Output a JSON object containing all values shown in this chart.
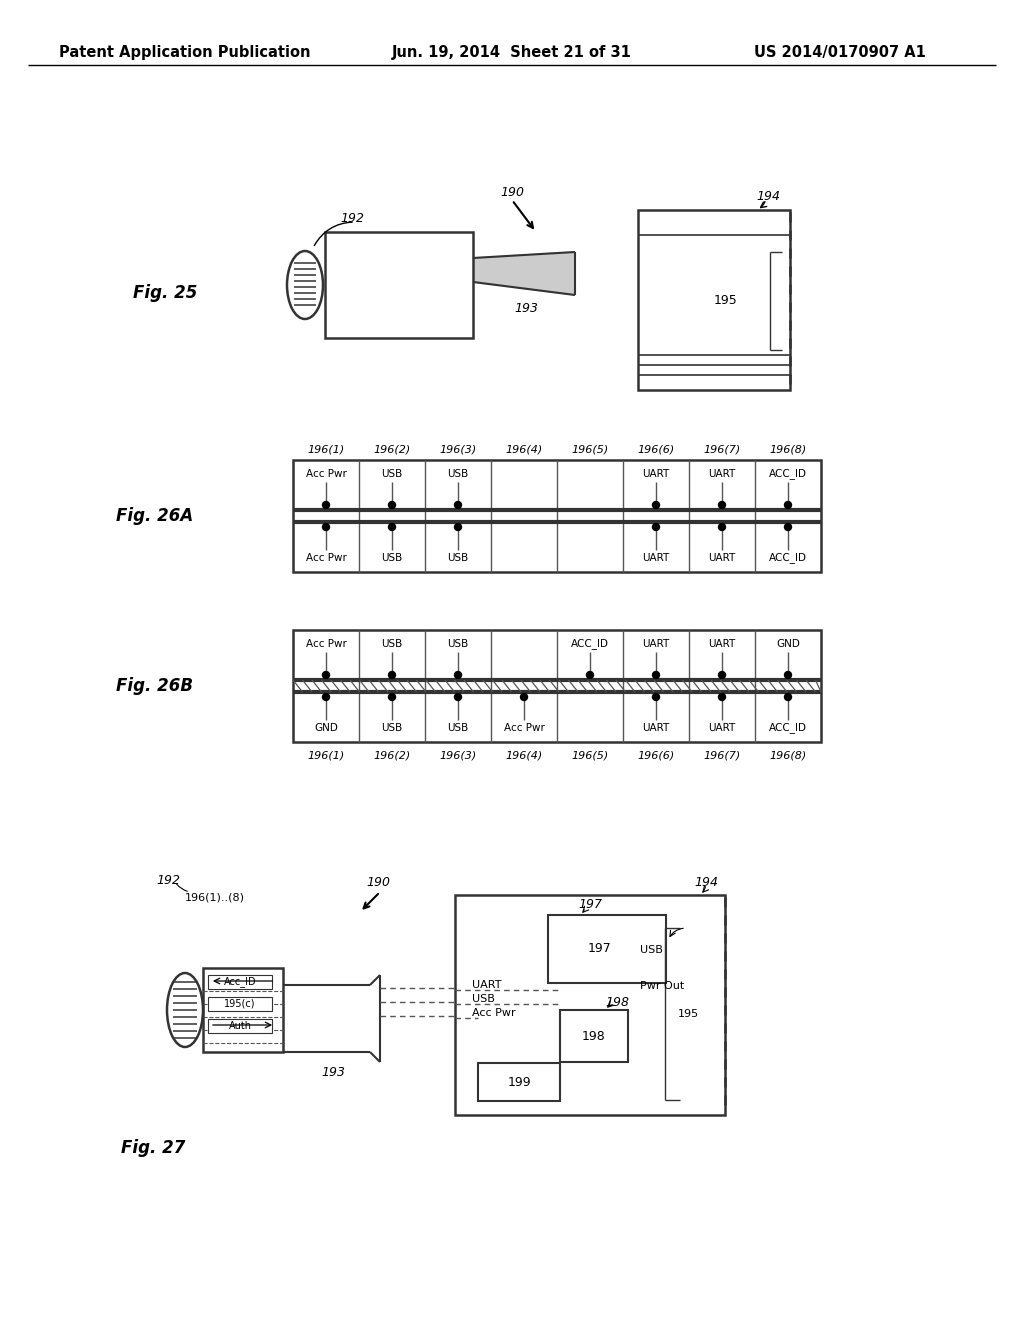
{
  "bg_color": "#ffffff",
  "header_left": "Patent Application Publication",
  "header_mid": "Jun. 19, 2014  Sheet 21 of 31",
  "header_right": "US 2014/0170907 A1",
  "fig25_label": "Fig. 25",
  "fig26a_label": "Fig. 26A",
  "fig26b_label": "Fig. 26B",
  "fig27_label": "Fig. 27",
  "col_nums": [
    "196(1)",
    "196(2)",
    "196(3)",
    "196(4)",
    "196(5)",
    "196(6)",
    "196(7)",
    "196(8)"
  ],
  "pin_26a_top": {
    "0": "Acc Pwr",
    "1": "USB",
    "2": "USB",
    "5": "UART",
    "6": "UART",
    "7": "ACC_ID"
  },
  "pin_26a_bot": {
    "0": "Acc Pwr",
    "1": "USB",
    "2": "USB",
    "5": "UART",
    "6": "UART",
    "7": "ACC_ID"
  },
  "pin_26b_top": {
    "0": "Acc Pwr",
    "1": "USB",
    "2": "USB",
    "4": "ACC_ID",
    "5": "UART",
    "6": "UART",
    "7": "GND"
  },
  "pin_26b_bot": {
    "0": "GND",
    "1": "USB",
    "2": "USB",
    "3": "Acc Pwr",
    "5": "UART",
    "6": "UART",
    "7": "ACC_ID"
  }
}
